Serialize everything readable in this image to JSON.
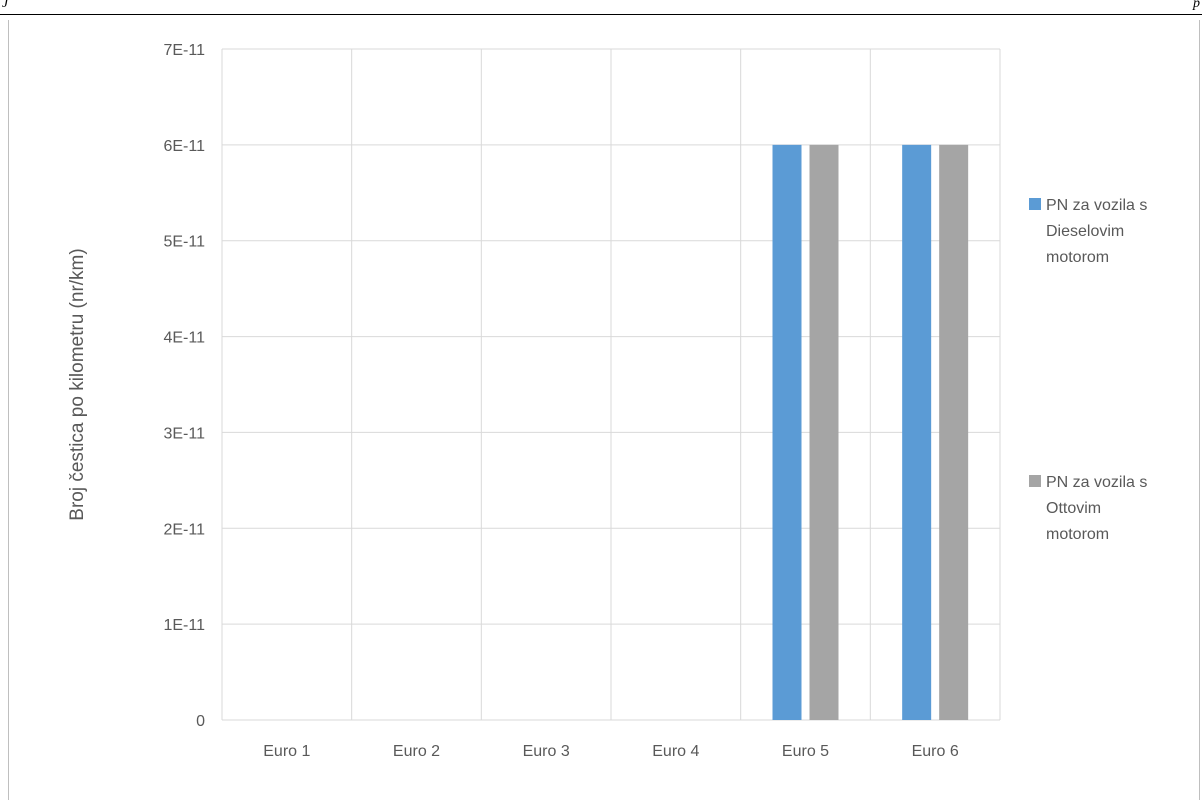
{
  "page": {
    "header_left": "J",
    "header_right": "p"
  },
  "chart_data": {
    "type": "bar",
    "categories": [
      "Euro 1",
      "Euro 2",
      "Euro 3",
      "Euro 4",
      "Euro 5",
      "Euro 6"
    ],
    "series": [
      {
        "name": "PN za vozila s Dieselovim motorom",
        "legend_lines": [
          "PN za vozila s",
          "Dieselovim",
          "motorom"
        ],
        "color": "#5b9bd5",
        "values": [
          0,
          0,
          0,
          0,
          6e-11,
          6e-11
        ]
      },
      {
        "name": "PN za vozila s Ottovim motorom",
        "legend_lines": [
          "PN za vozila s",
          "Ottovim",
          "motorom"
        ],
        "color": "#a5a5a5",
        "values": [
          0,
          0,
          0,
          0,
          6e-11,
          6e-11
        ]
      }
    ],
    "ylabel": "Broj čestica po kilometru (nr/km)",
    "xlabel": "",
    "ylim": [
      0,
      7e-11
    ],
    "yticks": [
      {
        "value": 0,
        "label": "0"
      },
      {
        "value": 1e-11,
        "label": "1E-11"
      },
      {
        "value": 2e-11,
        "label": "2E-11"
      },
      {
        "value": 3e-11,
        "label": "3E-11"
      },
      {
        "value": 4e-11,
        "label": "4E-11"
      },
      {
        "value": 5e-11,
        "label": "5E-11"
      },
      {
        "value": 6e-11,
        "label": "6E-11"
      },
      {
        "value": 7e-11,
        "label": "7E-11"
      }
    ],
    "grid": true,
    "legend_position": "right",
    "gridline_color": "#d9d9d9",
    "text_color": "#595959"
  }
}
